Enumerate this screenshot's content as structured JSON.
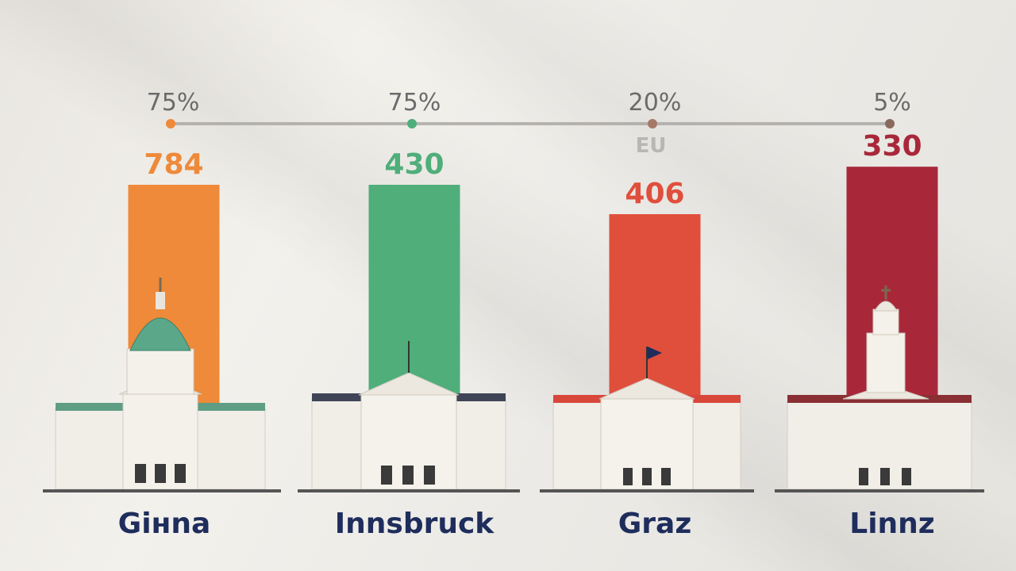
{
  "chart_data": {
    "type": "bar",
    "categories": [
      "Gінna",
      "Innsbruck",
      "Graz",
      "Linnz"
    ],
    "values": [
      784,
      430,
      406,
      330
    ],
    "percentages": [
      "75%",
      "75%",
      "20%",
      "5%"
    ],
    "value_labels": [
      "784",
      "430",
      "406",
      "330"
    ],
    "annotation": "EU",
    "colors": [
      "#ee8a3a",
      "#4fae7a",
      "#e04f3c",
      "#a8283a"
    ],
    "marker_colors": [
      "#ee8a3a",
      "#4fae7a",
      "#a67868",
      "#8a6a5e"
    ],
    "ylim": [
      0,
      900
    ],
    "grid": false,
    "legend": "none",
    "bar_heights_relative": [
      1.0,
      1.0,
      0.87,
      1.08
    ]
  },
  "icons": {
    "building_1": "domed-parliament-building-icon",
    "building_2": "columned-building-with-flag-icon",
    "building_3": "columned-building-with-flag-icon",
    "building_4": "tower-building-icon"
  }
}
